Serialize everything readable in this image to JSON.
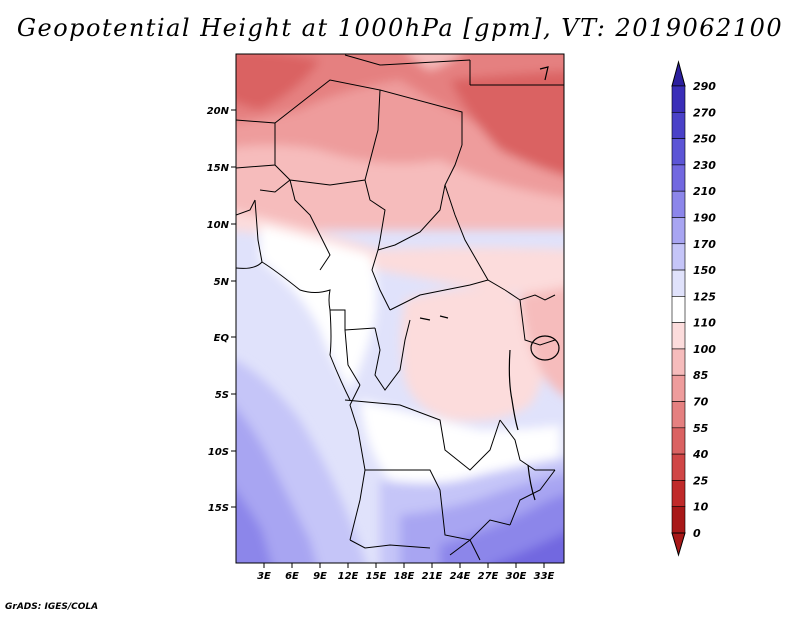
{
  "title": "Geopotential Height at 1000hPa [gpm], VT: 2019062100",
  "credit": "GrADS: IGES/COLA",
  "map": {
    "lat_labels": [
      "20N",
      "15N",
      "10N",
      "5N",
      "EQ",
      "5S",
      "10S",
      "15S"
    ],
    "lon_labels": [
      "3E",
      "6E",
      "9E",
      "12E",
      "15E",
      "18E",
      "21E",
      "24E",
      "27E",
      "30E",
      "33E"
    ],
    "region": "Central Africa"
  },
  "colorbar": {
    "labels": [
      "290",
      "270",
      "250",
      "230",
      "210",
      "190",
      "170",
      "150",
      "125",
      "110",
      "100",
      "85",
      "70",
      "55",
      "40",
      "25",
      "10",
      "0"
    ],
    "colors": {
      "c290": "#2c1f9e",
      "c270": "#3a2eb8",
      "c250": "#4a41c8",
      "c230": "#5c55d6",
      "c210": "#7268e0",
      "c190": "#8c86ea",
      "c170": "#a8a5f2",
      "c150": "#c5c5f8",
      "c125": "#e0e2fb",
      "c110": "#ffffff",
      "c100": "#fcdcdc",
      "c85": "#f6bcbc",
      "c70": "#ee9c9c",
      "c55": "#e58080",
      "c40": "#da6262",
      "c25": "#d04646",
      "c10": "#c02a2a",
      "c0": "#a81818"
    }
  }
}
